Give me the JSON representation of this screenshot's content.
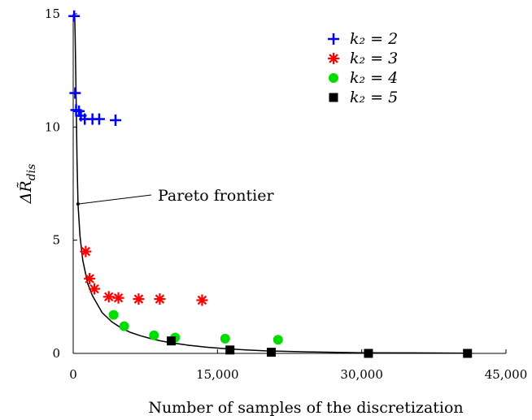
{
  "chart_data": {
    "type": "scatter",
    "xlabel": "Number of samples of the discretization",
    "ylabel": "ΔR̃dis",
    "ylabel_main": "ΔR̃",
    "ylabel_sub": "dis",
    "xlim": [
      0,
      45000
    ],
    "ylim": [
      0,
      15
    ],
    "x_ticks": [
      0,
      15000,
      30000,
      45000
    ],
    "x_tick_labels": [
      "0",
      "15,000",
      "30,000",
      "45,000"
    ],
    "y_ticks": [
      0,
      5,
      10,
      15
    ],
    "y_tick_labels": [
      "0",
      "5",
      "10",
      "15"
    ],
    "grid": false,
    "legend_position": "top-right",
    "series": [
      {
        "name": "k2 = 2",
        "legend_label": "k₂ = 2",
        "marker": "plus",
        "color": "#0000ff",
        "points": [
          [
            100,
            14.9
          ],
          [
            200,
            11.5
          ],
          [
            300,
            10.75
          ],
          [
            600,
            10.7
          ],
          [
            800,
            10.5
          ],
          [
            1200,
            10.35
          ],
          [
            2000,
            10.35
          ],
          [
            2700,
            10.35
          ],
          [
            4400,
            10.3
          ]
        ]
      },
      {
        "name": "k2 = 3",
        "legend_label": "k₂ = 3",
        "marker": "asterisk",
        "color": "#ff0000",
        "points": [
          [
            1300,
            4.5
          ],
          [
            1700,
            3.3
          ],
          [
            2200,
            2.85
          ],
          [
            3700,
            2.5
          ],
          [
            4700,
            2.45
          ],
          [
            6800,
            2.4
          ],
          [
            9000,
            2.4
          ],
          [
            13400,
            2.35
          ]
        ]
      },
      {
        "name": "k2 = 4",
        "legend_label": "k₂ = 4",
        "marker": "circle",
        "color": "#00dd00",
        "points": [
          [
            4200,
            1.7
          ],
          [
            5300,
            1.2
          ],
          [
            8400,
            0.8
          ],
          [
            10600,
            0.7
          ],
          [
            15800,
            0.65
          ],
          [
            21300,
            0.6
          ]
        ]
      },
      {
        "name": "k2 = 5",
        "legend_label": "k₂ = 5",
        "marker": "square",
        "color": "#000000",
        "points": [
          [
            10200,
            0.55
          ],
          [
            16300,
            0.15
          ],
          [
            20600,
            0.05
          ],
          [
            30700,
            0.0
          ],
          [
            41000,
            0.0
          ]
        ]
      }
    ],
    "frontier_curve": {
      "name": "Pareto frontier",
      "color": "#000000",
      "points": [
        [
          150,
          15.0
        ],
        [
          200,
          14.0
        ],
        [
          300,
          11.5
        ],
        [
          400,
          8.5
        ],
        [
          500,
          6.6
        ],
        [
          700,
          5.2
        ],
        [
          1000,
          4.1
        ],
        [
          1500,
          3.1
        ],
        [
          2000,
          2.55
        ],
        [
          3000,
          1.8
        ],
        [
          4000,
          1.4
        ],
        [
          5000,
          1.12
        ],
        [
          6000,
          0.92
        ],
        [
          7000,
          0.78
        ],
        [
          8000,
          0.66
        ],
        [
          9000,
          0.56
        ],
        [
          10000,
          0.48
        ],
        [
          12000,
          0.36
        ],
        [
          14000,
          0.27
        ],
        [
          16000,
          0.2
        ],
        [
          18000,
          0.15
        ],
        [
          20000,
          0.11
        ],
        [
          25000,
          0.06
        ],
        [
          30000,
          0.03
        ],
        [
          35000,
          0.02
        ],
        [
          41000,
          0.01
        ]
      ]
    },
    "annotation": {
      "text": "Pareto frontier",
      "point": [
        500,
        6.6
      ]
    }
  }
}
